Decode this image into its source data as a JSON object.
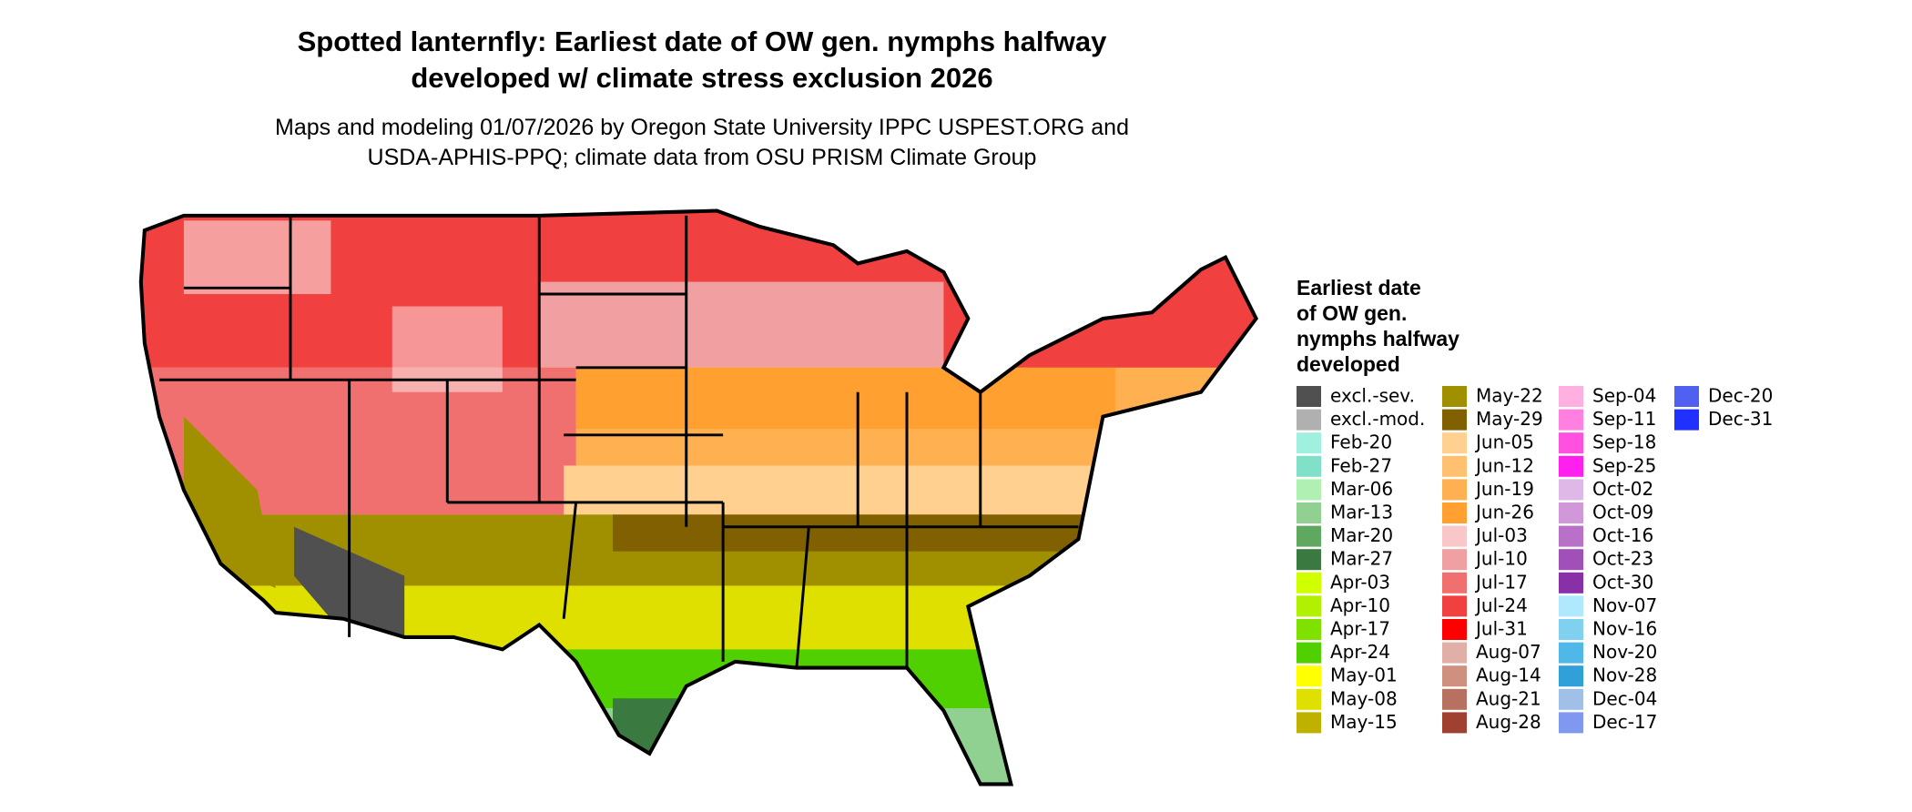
{
  "header": {
    "title_lines": [
      "Spotted lanternfly: Earliest date of OW gen. nymphs halfway",
      "developed w/ climate stress exclusion 2026"
    ],
    "subtitle_lines": [
      "Maps and modeling 01/07/2026 by Oregon State University IPPC USPEST.ORG and",
      "USDA-APHIS-PPQ; climate data from OSU PRISM Climate Group"
    ]
  },
  "legend": {
    "title_lines": [
      "Earliest date",
      "of OW gen.",
      "nymphs halfway",
      "developed"
    ],
    "items": [
      {
        "label": "excl.-sev.",
        "color": "#505050"
      },
      {
        "label": "excl.-mod.",
        "color": "#b0b0b0"
      },
      {
        "label": "Feb-20",
        "color": "#a0f0e0"
      },
      {
        "label": "Feb-27",
        "color": "#80e0c8"
      },
      {
        "label": "Mar-06",
        "color": "#b0f0b0"
      },
      {
        "label": "Mar-13",
        "color": "#90d090"
      },
      {
        "label": "Mar-20",
        "color": "#60a860"
      },
      {
        "label": "Mar-27",
        "color": "#3a7a40"
      },
      {
        "label": "Apr-03",
        "color": "#d0ff00"
      },
      {
        "label": "Apr-10",
        "color": "#b0f000"
      },
      {
        "label": "Apr-17",
        "color": "#80e000"
      },
      {
        "label": "Apr-24",
        "color": "#50d000"
      },
      {
        "label": "May-01",
        "color": "#ffff00"
      },
      {
        "label": "May-08",
        "color": "#e0e000"
      },
      {
        "label": "May-15",
        "color": "#c0b000"
      },
      {
        "label": "May-22",
        "color": "#a09000"
      },
      {
        "label": "May-29",
        "color": "#806000"
      },
      {
        "label": "Jun-05",
        "color": "#ffd090"
      },
      {
        "label": "Jun-12",
        "color": "#ffc070"
      },
      {
        "label": "Jun-19",
        "color": "#ffb050"
      },
      {
        "label": "Jun-26",
        "color": "#ffa030"
      },
      {
        "label": "Jul-03",
        "color": "#f8c8c8"
      },
      {
        "label": "Jul-10",
        "color": "#f0a0a0"
      },
      {
        "label": "Jul-17",
        "color": "#f07070"
      },
      {
        "label": "Jul-24",
        "color": "#f04040"
      },
      {
        "label": "Jul-31",
        "color": "#ff0000"
      },
      {
        "label": "Aug-07",
        "color": "#e0b0a8"
      },
      {
        "label": "Aug-14",
        "color": "#d09080"
      },
      {
        "label": "Aug-21",
        "color": "#b87060"
      },
      {
        "label": "Aug-28",
        "color": "#a04030"
      },
      {
        "label": "Sep-04",
        "color": "#ffb0e0"
      },
      {
        "label": "Sep-11",
        "color": "#ff80e0"
      },
      {
        "label": "Sep-18",
        "color": "#ff50e0"
      },
      {
        "label": "Sep-25",
        "color": "#ff20f0"
      },
      {
        "label": "Oct-02",
        "color": "#e0b8e8"
      },
      {
        "label": "Oct-09",
        "color": "#d098d8"
      },
      {
        "label": "Oct-16",
        "color": "#b870c8"
      },
      {
        "label": "Oct-23",
        "color": "#a050b8"
      },
      {
        "label": "Oct-30",
        "color": "#8830a8"
      },
      {
        "label": "Nov-07",
        "color": "#b0e8ff"
      },
      {
        "label": "Nov-16",
        "color": "#80d0f0"
      },
      {
        "label": "Nov-20",
        "color": "#50b8e8"
      },
      {
        "label": "Nov-28",
        "color": "#30a0d8"
      },
      {
        "label": "Dec-04",
        "color": "#a0c0e8"
      },
      {
        "label": "Dec-17",
        "color": "#8098f0"
      },
      {
        "label": "Dec-20",
        "color": "#5060f0"
      },
      {
        "label": "Dec-31",
        "color": "#2030ff"
      }
    ]
  }
}
